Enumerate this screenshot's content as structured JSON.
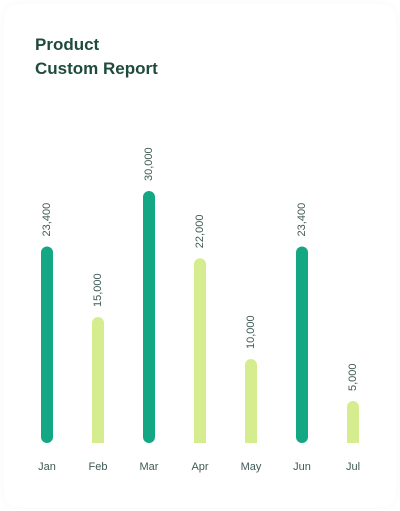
{
  "header": {
    "title_line_1": "Product",
    "title_line_2": "Custom Report"
  },
  "colors": {
    "primary_bar": "#14a784",
    "secondary_bar": "#d6ed8f",
    "title": "#1f4b3e",
    "labels": "#3f5a55"
  },
  "chart_data": {
    "type": "bar",
    "title": "Product Custom Report",
    "categories": [
      "Jan",
      "Feb",
      "Mar",
      "Apr",
      "May",
      "Jun",
      "Jul"
    ],
    "values": [
      23400,
      15000,
      30000,
      22000,
      10000,
      23400,
      5000
    ],
    "value_labels": [
      "23,400",
      "15,000",
      "30,000",
      "22,000",
      "10,000",
      "23,400",
      "5,000"
    ],
    "bar_colors": [
      "primary",
      "secondary",
      "primary",
      "secondary",
      "secondary",
      "primary",
      "secondary"
    ],
    "xlabel": "",
    "ylabel": "",
    "grid": false,
    "legend": "none"
  }
}
